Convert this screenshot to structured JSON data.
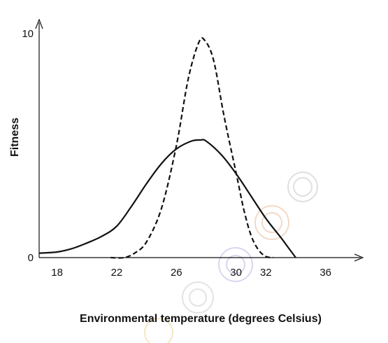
{
  "chart_data": {
    "type": "line",
    "title": "",
    "xlabel": "Environmental temperature (degrees Celsius)",
    "ylabel": "Fitness",
    "xlim": [
      16.8,
      38.5
    ],
    "ylim": [
      0,
      10
    ],
    "x_ticks": [
      18,
      22,
      26,
      30,
      32,
      36
    ],
    "y_ticks": [
      0,
      10
    ],
    "grid": false,
    "legend": "none",
    "series": [
      {
        "style": "solid",
        "color": "#111111",
        "x": [
          16.8,
          18,
          19,
          20,
          21,
          22,
          23,
          24,
          25,
          26,
          27,
          27.6,
          28,
          29,
          30,
          31,
          32,
          33,
          33.5,
          34
        ],
        "y": [
          0.2,
          0.25,
          0.4,
          0.65,
          0.95,
          1.4,
          2.3,
          3.3,
          4.2,
          4.85,
          5.2,
          5.25,
          5.2,
          4.6,
          3.75,
          2.75,
          1.75,
          0.9,
          0.45,
          0
        ]
      },
      {
        "style": "dashed",
        "color": "#111111",
        "x": [
          21.6,
          22.5,
          23.2,
          24,
          25,
          26,
          26.8,
          27.5,
          27.9,
          28.5,
          29.2,
          30,
          30.5,
          31,
          31.5,
          32,
          32.5
        ],
        "y": [
          0,
          0,
          0.2,
          0.7,
          2.2,
          5.0,
          8.0,
          9.6,
          9.7,
          8.8,
          6.3,
          3.8,
          2.2,
          1.0,
          0.35,
          0.05,
          0
        ]
      }
    ]
  }
}
